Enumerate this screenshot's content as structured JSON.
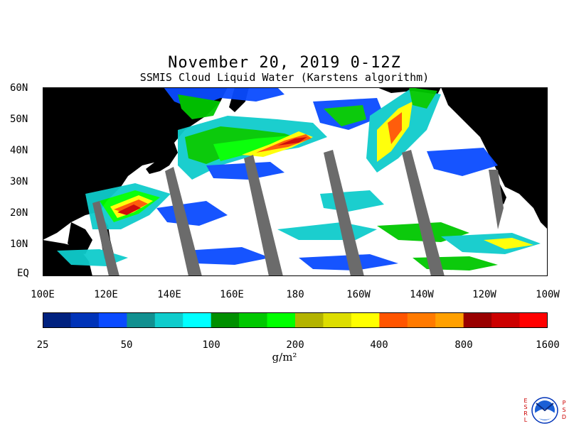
{
  "title": "November 20, 2019 0-12Z",
  "subtitle": "SSMIS Cloud Liquid Water (Karstens algorithm)",
  "map": {
    "lat_labels": [
      "60N",
      "50N",
      "40N",
      "30N",
      "20N",
      "10N",
      "EQ"
    ],
    "lon_labels": [
      "100E",
      "120E",
      "140E",
      "160E",
      "180",
      "160W",
      "140W",
      "120W",
      "100W"
    ],
    "colors": {
      "land": "#000000",
      "ocean": "#ffffff",
      "missing_swath": "#6b6b6b"
    }
  },
  "colorbar": {
    "tick_labels": [
      "25",
      "50",
      "100",
      "200",
      "400",
      "800",
      "1600"
    ],
    "colors": [
      "#00217f",
      "#0033b8",
      "#0a4bff",
      "#119090",
      "#0fcccc",
      "#00ffff",
      "#008f00",
      "#00c800",
      "#00ff00",
      "#b3b300",
      "#dddd00",
      "#ffff00",
      "#ff5500",
      "#ff7a00",
      "#ffa000",
      "#990000",
      "#cc0000",
      "#ff0000"
    ],
    "units": "g/m²"
  },
  "logo": {
    "left_letters": "ESRL",
    "right_letters": "PSD",
    "center": "NOAA"
  }
}
